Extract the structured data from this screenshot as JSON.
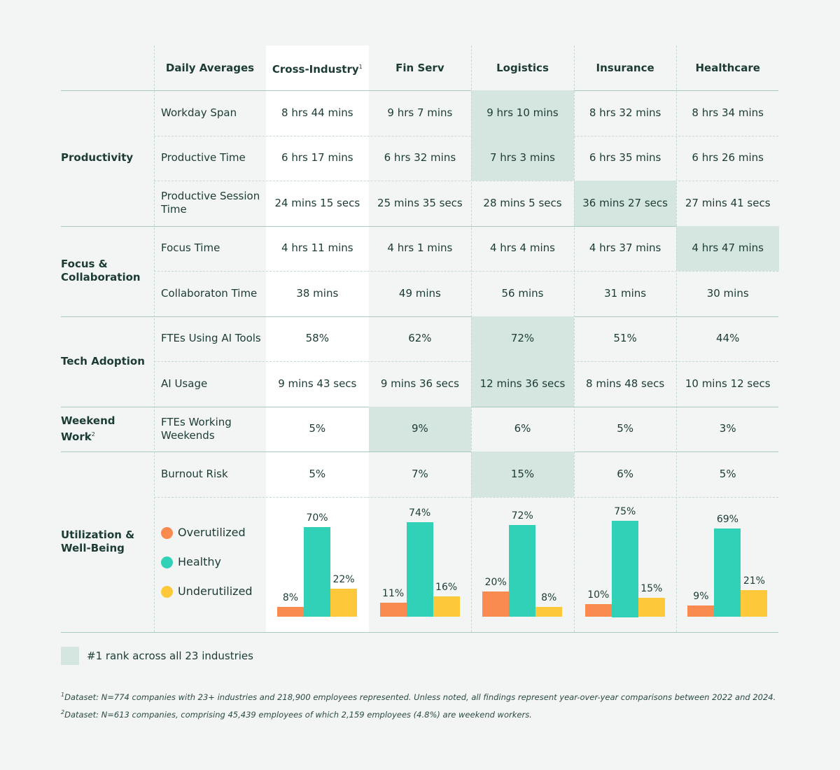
{
  "header": {
    "row_label": "Daily Averages",
    "columns": [
      {
        "name": "Cross-Industry",
        "note": "1"
      },
      {
        "name": "Fin Serv"
      },
      {
        "name": "Logistics"
      },
      {
        "name": "Insurance"
      },
      {
        "name": "Healthcare"
      }
    ]
  },
  "groups": [
    {
      "label": "Productivity",
      "rows": [
        {
          "metric": "Workday Span",
          "cells": [
            "8 hrs 44 mins",
            "9 hrs 7 mins",
            "9 hrs 10 mins",
            "8 hrs 32 mins",
            "8 hrs 34 mins"
          ],
          "highlight": 2
        },
        {
          "metric": "Productive Time",
          "cells": [
            "6 hrs 17 mins",
            "6 hrs 32 mins",
            "7 hrs 3 mins",
            "6 hrs 35 mins",
            "6 hrs 26 mins"
          ],
          "highlight": 2
        },
        {
          "metric": "Productive Session Time",
          "cells": [
            "24 mins 15 secs",
            "25 mins 35 secs",
            "28 mins 5 secs",
            "36 mins 27 secs",
            "27 mins 41 secs"
          ],
          "highlight": 3
        }
      ]
    },
    {
      "label": "Focus & Collaboration",
      "rows": [
        {
          "metric": "Focus Time",
          "cells": [
            "4 hrs 11 mins",
            "4 hrs 1 mins",
            "4 hrs 4 mins",
            "4 hrs 37 mins",
            "4 hrs 47 mins"
          ],
          "highlight": 4
        },
        {
          "metric": "Collaboraton Time",
          "cells": [
            "38 mins",
            "49 mins",
            "56 mins",
            "31 mins",
            "30 mins"
          ]
        }
      ]
    },
    {
      "label": "Tech Adoption",
      "rows": [
        {
          "metric": "FTEs Using AI Tools",
          "cells": [
            "58%",
            "62%",
            "72%",
            "51%",
            "44%"
          ],
          "highlight": 2
        },
        {
          "metric": "AI Usage",
          "cells": [
            "9 mins 43 secs",
            "9 mins 36 secs",
            "12 mins 36 secs",
            "8 mins 48 secs",
            "10 mins 12 secs"
          ],
          "highlight": 2
        }
      ]
    },
    {
      "label": "Weekend Work",
      "note": "2",
      "rows": [
        {
          "metric": "FTEs Working Weekends",
          "cells": [
            "5%",
            "9%",
            "6%",
            "5%",
            "3%"
          ],
          "highlight": 1
        }
      ]
    },
    {
      "label": "Utilization & Well-Being",
      "rows": [
        {
          "metric": "Burnout Risk",
          "cells": [
            "5%",
            "7%",
            "15%",
            "6%",
            "5%"
          ],
          "highlight": 2
        }
      ]
    }
  ],
  "chart_data": {
    "type": "bar",
    "series": [
      {
        "name": "Overutilized",
        "color": "#f98a50",
        "values": [
          8,
          11,
          20,
          10,
          9
        ],
        "value_labels": [
          "8%",
          "11%",
          "20%",
          "10%",
          "9%"
        ]
      },
      {
        "name": "Healthy",
        "color": "#30d1b7",
        "values": [
          70,
          74,
          72,
          75,
          69
        ],
        "value_labels": [
          "70%",
          "74%",
          "72%",
          "75%",
          "69%"
        ]
      },
      {
        "name": "Underutilized",
        "color": "#fdc93a",
        "values": [
          22,
          16,
          8,
          15,
          21
        ],
        "value_labels": [
          "22%",
          "16%",
          "8%",
          "15%",
          "21%"
        ]
      }
    ]
  },
  "legend": {
    "label": "#1 rank across all 23 industries"
  },
  "footnotes": [
    {
      "mark": "1",
      "text": "Dataset: N=774 companies with 23+ industries and 218,900 employees represented. Unless noted, all findings represent year-over-year comparisons between 2022 and 2024."
    },
    {
      "mark": "2",
      "text": "Dataset: N=613 companies, comprising 45,439 employees of which 2,159 employees (4.8%) are weekend workers."
    }
  ]
}
